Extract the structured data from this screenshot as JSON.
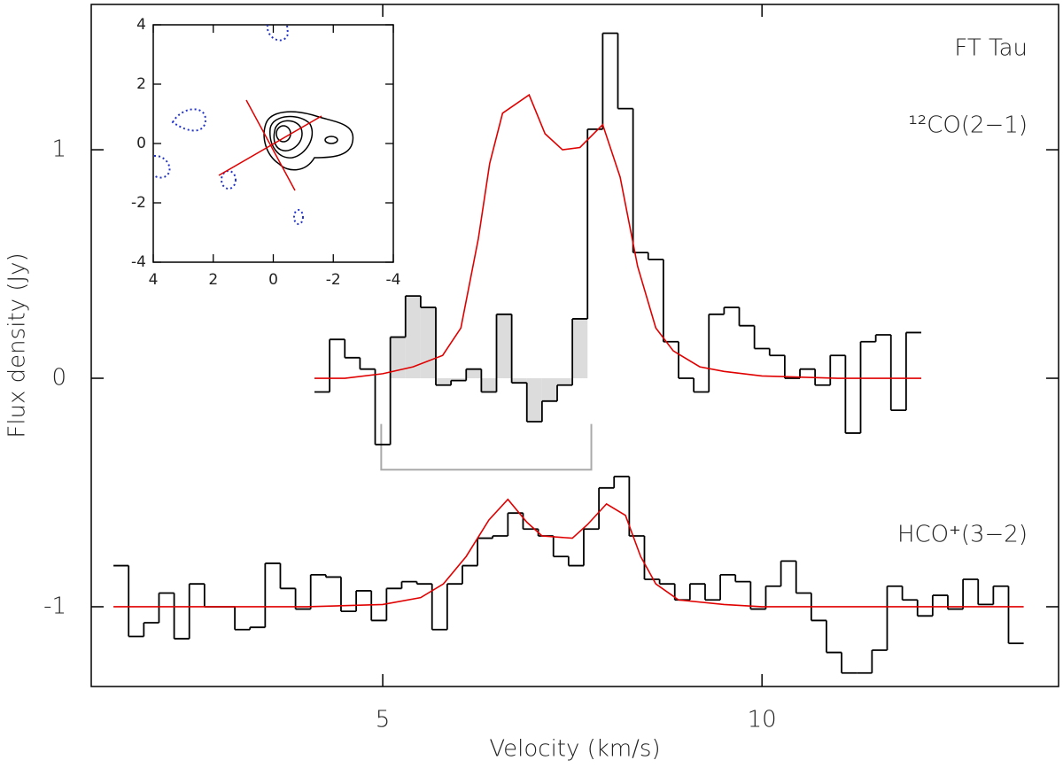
{
  "chart_data": {
    "type": "step",
    "xlabel": "Velocity (km/s)",
    "ylabel": "Flux density (Jy)",
    "annotation": "FT Tau",
    "xlim": [
      1.157,
      13.91
    ],
    "ylim": [
      -1.349,
      1.636
    ],
    "xticks": [
      5,
      10
    ],
    "yticks": [
      -1,
      0,
      1
    ],
    "series": [
      {
        "name": "¹²CO(2−1)",
        "color": "#000000",
        "bins": [
          4.1,
          4.3,
          4.5,
          4.7,
          4.9,
          5.1,
          5.3,
          5.5,
          5.7,
          5.9,
          6.1,
          6.3,
          6.5,
          6.7,
          6.9,
          7.1,
          7.3,
          7.5,
          7.7,
          7.9,
          8.1,
          8.3,
          8.5,
          8.7,
          8.9,
          9.1,
          9.3,
          9.5,
          9.7,
          9.9,
          10.1,
          10.3,
          10.5,
          10.7,
          10.9,
          11.1,
          11.3,
          11.5,
          11.7,
          11.9,
          12.1
        ],
        "values": [
          -0.06,
          0.17,
          0.09,
          0.04,
          -0.29,
          0.18,
          0.36,
          0.31,
          -0.03,
          -0.01,
          0.04,
          -0.06,
          0.28,
          -0.02,
          -0.19,
          -0.1,
          -0.03,
          0.26,
          1.09,
          1.51,
          1.18,
          0.55,
          0.52,
          0.16,
          0.0,
          -0.06,
          0.28,
          0.31,
          0.23,
          0.13,
          0.1,
          0.0,
          0.04,
          -0.03,
          0.1,
          -0.24,
          0.16,
          0.19,
          -0.14,
          0.2
        ]
      },
      {
        "name": "HCO⁺(3−2)",
        "color": "#000000",
        "bins": [
          1.45,
          1.65,
          1.85,
          2.05,
          2.25,
          2.45,
          2.65,
          2.85,
          3.05,
          3.25,
          3.45,
          3.65,
          3.85,
          4.05,
          4.25,
          4.45,
          4.65,
          4.85,
          5.05,
          5.25,
          5.45,
          5.65,
          5.85,
          6.05,
          6.25,
          6.45,
          6.65,
          6.85,
          7.05,
          7.25,
          7.45,
          7.65,
          7.85,
          8.05,
          8.25,
          8.45,
          8.65,
          8.85,
          9.05,
          9.25,
          9.45,
          9.65,
          9.85,
          10.05,
          10.25,
          10.45,
          10.65,
          10.85,
          11.05,
          11.25,
          11.45,
          11.65,
          11.85,
          12.05,
          12.25,
          12.45,
          12.65,
          12.85,
          13.05,
          13.25,
          13.45
        ],
        "values": [
          -0.82,
          -1.13,
          -1.07,
          -0.94,
          -1.14,
          -0.9,
          -1.0,
          -1.0,
          -1.1,
          -1.09,
          -0.81,
          -0.92,
          -1.01,
          -0.86,
          -0.87,
          -1.02,
          -0.93,
          -1.06,
          -0.92,
          -0.89,
          -0.9,
          -1.1,
          -0.9,
          -0.82,
          -0.7,
          -0.69,
          -0.59,
          -0.66,
          -0.69,
          -0.78,
          -0.82,
          -0.66,
          -0.48,
          -0.43,
          -0.69,
          -0.88,
          -0.9,
          -0.97,
          -0.9,
          -0.97,
          -0.86,
          -0.89,
          -1.01,
          -0.91,
          -0.8,
          -0.94,
          -1.06,
          -1.2,
          -1.29,
          -1.29,
          -1.19,
          -0.91,
          -0.97,
          -1.04,
          -0.95,
          -1.01,
          -0.88,
          -0.99,
          -0.91,
          -1.16
        ]
      }
    ],
    "models": [
      {
        "color": "#e00000",
        "x": [
          4.1,
          4.5,
          5.0,
          5.4,
          5.79,
          6.03,
          6.26,
          6.41,
          6.58,
          6.93,
          7.14,
          7.37,
          7.6,
          7.9,
          8.13,
          8.36,
          8.6,
          8.83,
          9.18,
          9.5,
          10.0,
          11.0,
          12.1
        ],
        "values": [
          0.0,
          0.0,
          0.02,
          0.05,
          0.1,
          0.22,
          0.61,
          0.94,
          1.16,
          1.24,
          1.07,
          1.0,
          1.01,
          1.11,
          0.88,
          0.49,
          0.22,
          0.12,
          0.05,
          0.03,
          0.01,
          0.0,
          0.0
        ]
      },
      {
        "color": "#e00000",
        "x": [
          1.45,
          3.0,
          4.0,
          5.0,
          5.5,
          5.8,
          6.1,
          6.4,
          6.65,
          6.9,
          7.1,
          7.5,
          7.7,
          7.95,
          8.2,
          8.4,
          8.6,
          8.9,
          9.5,
          10.0,
          11.0,
          12.0,
          13.45
        ],
        "values": [
          -1.0,
          -1.0,
          -1.0,
          -0.99,
          -0.96,
          -0.9,
          -0.78,
          -0.62,
          -0.53,
          -0.63,
          -0.69,
          -0.7,
          -0.64,
          -0.55,
          -0.6,
          -0.78,
          -0.9,
          -0.97,
          -0.99,
          -1.0,
          -1.0,
          -1.0,
          -1.0
        ]
      }
    ],
    "shade": {
      "range": [
        5.1,
        7.7
      ],
      "color": "#dcdcdc"
    },
    "bracket": {
      "x": [
        4.98,
        7.75
      ],
      "y": [
        -0.2,
        -0.4
      ],
      "color": "#aaaaaa"
    },
    "inset": {
      "xlim": [
        4,
        -4
      ],
      "ylim": [
        -4,
        4
      ],
      "xticks": [
        4,
        2,
        0,
        -2,
        -4
      ],
      "yticks": [
        -4,
        -2,
        0,
        2,
        4
      ]
    }
  }
}
